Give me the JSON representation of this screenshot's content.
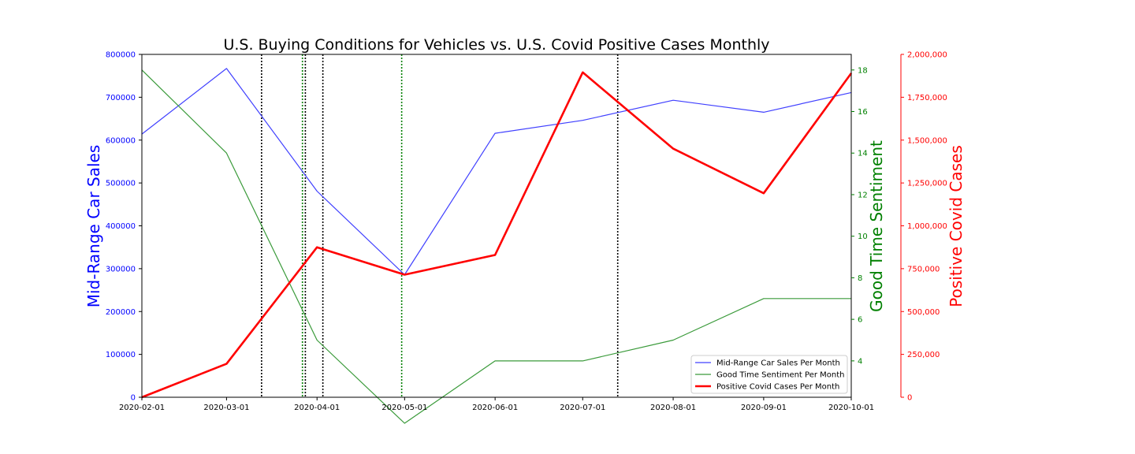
{
  "chart_data": {
    "type": "line",
    "title": "U.S. Buying Conditions for Vehicles vs. U.S. Covid Positive Cases Monthly",
    "x": [
      "2020-02-01",
      "2020-03-01",
      "2020-04-01",
      "2020-05-01",
      "2020-06-01",
      "2020-07-01",
      "2020-08-01",
      "2020-09-01",
      "2020-10-01"
    ],
    "x_tick_labels": [
      "2020-02-01",
      "2020-03-01",
      "2020-04-01",
      "2020-05-01",
      "2020-06-01",
      "2020-07-01",
      "2020-08-01",
      "2020-09-01",
      "2020-10-01"
    ],
    "axes": {
      "left": {
        "label": "Mid-Range Car Sales",
        "color": "#0000ff",
        "ylim": [
          0,
          800000
        ],
        "ticks": [
          0,
          100000,
          200000,
          300000,
          400000,
          500000,
          600000,
          700000,
          800000
        ],
        "tick_labels": [
          "0",
          "100000",
          "200000",
          "300000",
          "400000",
          "500000",
          "600000",
          "700000",
          "800000"
        ]
      },
      "right1": {
        "label": "Good Time Sentiment",
        "color": "#008000",
        "ylim": [
          2.25,
          18.75
        ],
        "ticks": [
          4,
          6,
          8,
          10,
          12,
          14,
          16,
          18
        ],
        "tick_labels": [
          "4",
          "6",
          "8",
          "10",
          "12",
          "14",
          "16",
          "18"
        ]
      },
      "right2": {
        "label": "Positive Covid Cases",
        "color": "#ff0000",
        "ylim": [
          0,
          2000000
        ],
        "ticks": [
          0,
          250000,
          500000,
          750000,
          1000000,
          1250000,
          1500000,
          1750000,
          2000000
        ],
        "tick_labels": [
          "0",
          "250,000",
          "500,000",
          "750,000",
          "1,000,000",
          "1,250,000",
          "1,500,000",
          "1,750,000",
          "2,000,000"
        ]
      }
    },
    "series": [
      {
        "name": "Mid-Range Car Sales Per Month",
        "axis": "left",
        "color": "#4040ff",
        "values": [
          614000,
          767000,
          481000,
          286000,
          616000,
          646000,
          693000,
          665000,
          711000
        ]
      },
      {
        "name": "Good Time Sentiment Per Month",
        "axis": "right1",
        "color": "#3a9a3a",
        "values": [
          18,
          14,
          5,
          1,
          4,
          4,
          5,
          7,
          7
        ]
      },
      {
        "name": "Positive Covid Cases Per Month",
        "axis": "right2",
        "color": "#ff0000",
        "values": [
          0,
          195000,
          875000,
          715000,
          830000,
          1895000,
          1450000,
          1190000,
          1890000
        ]
      }
    ],
    "vlines": [
      {
        "x": "2020-03-13",
        "color": "#000000",
        "style": "dotted"
      },
      {
        "x": "2020-03-27",
        "color": "#008000",
        "style": "dotted"
      },
      {
        "x": "2020-03-28",
        "color": "#000000",
        "style": "dotted"
      },
      {
        "x": "2020-04-03",
        "color": "#000000",
        "style": "dotted"
      },
      {
        "x": "2020-04-30",
        "color": "#008000",
        "style": "dotted"
      },
      {
        "x": "2020-07-13",
        "color": "#000000",
        "style": "dotted"
      }
    ],
    "legend_position": "lower-right",
    "grid": false
  }
}
